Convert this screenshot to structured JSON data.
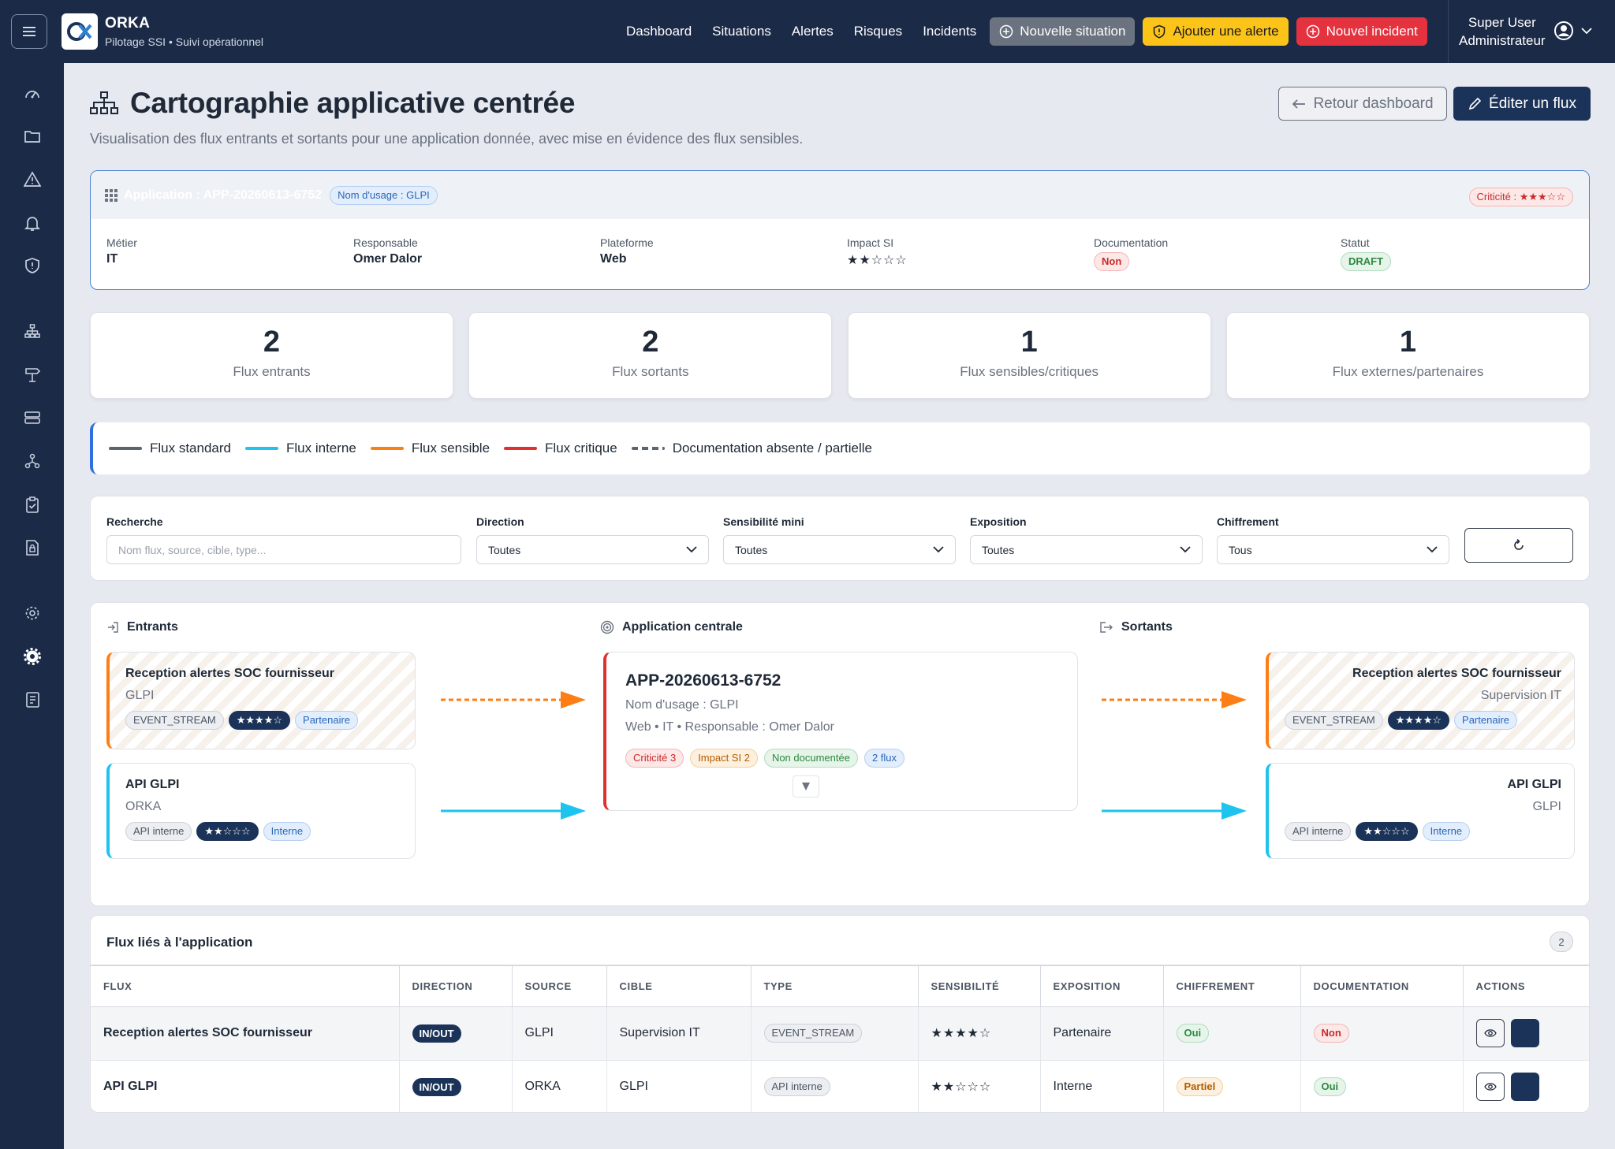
{
  "app": {
    "brand": "ORKA",
    "subtitle": "Pilotage SSI • Suivi opérationnel"
  },
  "nav": {
    "items": [
      "Dashboard",
      "Situations",
      "Alertes",
      "Risques",
      "Incidents"
    ],
    "btn_situation": "Nouvelle situation",
    "btn_alerte": "Ajouter une alerte",
    "btn_incident": "Nouvel incident"
  },
  "user": {
    "name": "Super User",
    "role": "Administrateur"
  },
  "page": {
    "title": "Cartographie applicative centrée",
    "subtitle": "Visualisation des flux entrants et sortants pour une application donnée, avec mise en évidence des flux sensibles.",
    "btn_back": "Retour dashboard",
    "btn_edit": "Éditer un flux"
  },
  "application": {
    "id_label": "Application : APP-20260613-6752",
    "usage_pill": "Nom d'usage : GLPI",
    "criticite_label": "Criticité :",
    "criticite_stars": "★★★☆☆",
    "meta": [
      {
        "label": "Métier",
        "value": "IT"
      },
      {
        "label": "Responsable",
        "value": "Omer Dalor"
      },
      {
        "label": "Plateforme",
        "value": "Web"
      },
      {
        "label": "Impact SI",
        "value": "★★☆☆☆"
      },
      {
        "label": "Documentation",
        "value": "Non"
      },
      {
        "label": "Statut",
        "value": "DRAFT"
      }
    ]
  },
  "stats": [
    {
      "num": "2",
      "label": "Flux entrants"
    },
    {
      "num": "2",
      "label": "Flux sortants"
    },
    {
      "num": "1",
      "label": "Flux sensibles/critiques"
    },
    {
      "num": "1",
      "label": "Flux externes/partenaires"
    }
  ],
  "legend": [
    {
      "label": "Flux standard",
      "color": "#5c6470"
    },
    {
      "label": "Flux interne",
      "color": "#1ec3ee"
    },
    {
      "label": "Flux sensible",
      "color": "#fd7e14"
    },
    {
      "label": "Flux critique",
      "color": "#e03131"
    },
    {
      "label": "Documentation absente / partielle",
      "color": "#5c6470"
    }
  ],
  "filters": {
    "search_label": "Recherche",
    "search_placeholder": "Nom flux, source, cible, type...",
    "direction_label": "Direction",
    "direction_value": "Toutes",
    "sens_label": "Sensibilité mini",
    "sens_value": "Toutes",
    "expo_label": "Exposition",
    "expo_value": "Toutes",
    "chiff_label": "Chiffrement",
    "chiff_value": "Tous"
  },
  "flowmap": {
    "in_title": "Entrants",
    "center_title": "Application centrale",
    "out_title": "Sortants",
    "incoming": [
      {
        "name": "Reception alertes SOC fournisseur",
        "peer": "GLPI",
        "type": "EVENT_STREAM",
        "stars": "★★★★☆",
        "exposure": "Partenaire"
      },
      {
        "name": "API GLPI",
        "peer": "ORKA",
        "type": "API interne",
        "stars": "★★☆☆☆",
        "exposure": "Interne"
      }
    ],
    "outgoing": [
      {
        "name": "Reception alertes SOC fournisseur",
        "peer": "Supervision IT",
        "type": "EVENT_STREAM",
        "stars": "★★★★☆",
        "exposure": "Partenaire"
      },
      {
        "name": "API GLPI",
        "peer": "GLPI",
        "type": "API interne",
        "stars": "★★☆☆☆",
        "exposure": "Interne"
      }
    ],
    "center": {
      "id": "APP-20260613-6752",
      "usage": "Nom d'usage : GLPI",
      "details": "Web • IT • Responsable : Omer Dalor",
      "tag_crit": "Criticité 3",
      "tag_impact": "Impact SI 2",
      "tag_doc": "Non documentée",
      "tag_flux": "2 flux"
    }
  },
  "table": {
    "title": "Flux liés à l'application",
    "count": "2",
    "headers": [
      "FLUX",
      "DIRECTION",
      "SOURCE",
      "CIBLE",
      "TYPE",
      "SENSIBILITÉ",
      "EXPOSITION",
      "CHIFFREMENT",
      "DOCUMENTATION",
      "ACTIONS"
    ],
    "rows": [
      {
        "flux": "Reception alertes SOC fournisseur",
        "direction": "IN/OUT",
        "source": "GLPI",
        "cible": "Supervision IT",
        "type": "EVENT_STREAM",
        "sens": "★★★★☆",
        "expo": "Partenaire",
        "chiff": "Oui",
        "doc": "Non"
      },
      {
        "flux": "API GLPI",
        "direction": "IN/OUT",
        "source": "ORKA",
        "cible": "GLPI",
        "type": "API interne",
        "sens": "★★☆☆☆",
        "expo": "Interne",
        "chiff": "Partiel",
        "doc": "Oui"
      }
    ]
  }
}
